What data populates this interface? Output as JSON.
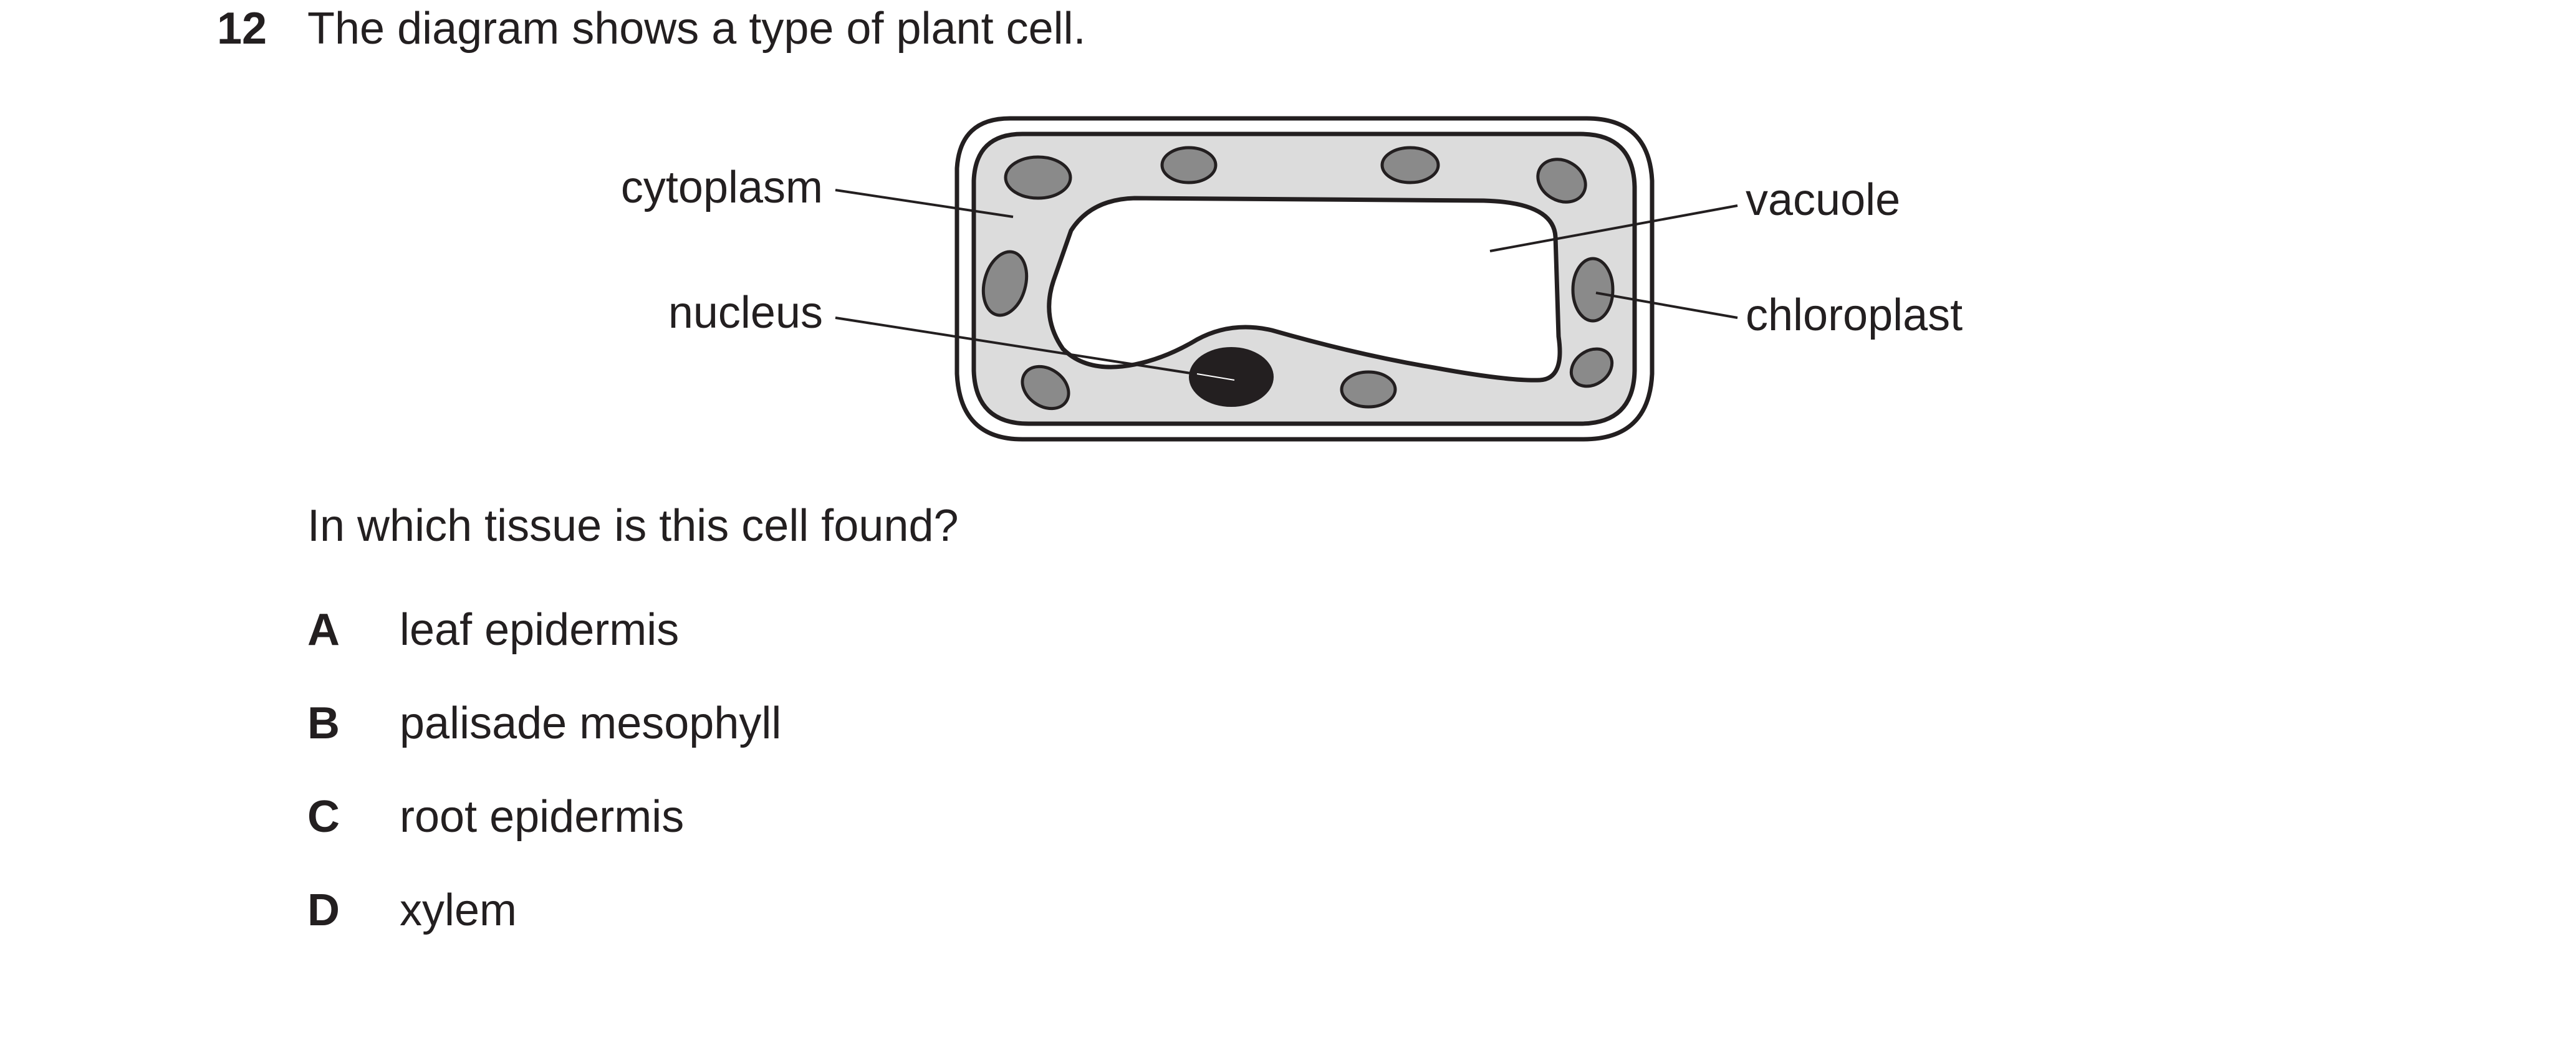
{
  "question": {
    "number": "12",
    "text": "The diagram shows a type of plant cell.",
    "prompt": "In which tissue is this cell found?"
  },
  "diagram": {
    "labels": {
      "cytoplasm": "cytoplasm",
      "nucleus": "nucleus",
      "vacuole": "vacuole",
      "chloroplast": "chloroplast"
    },
    "colors": {
      "outline": "#231f20",
      "cytoplasm_fill": "#dcdcdc",
      "chloroplast_fill": "#8a8a8a",
      "nucleus_fill": "#231f20",
      "wall_fill": "#ffffff"
    }
  },
  "options": [
    {
      "letter": "A",
      "text": "leaf epidermis"
    },
    {
      "letter": "B",
      "text": "palisade mesophyll"
    },
    {
      "letter": "C",
      "text": "root epidermis"
    },
    {
      "letter": "D",
      "text": "xylem"
    }
  ]
}
